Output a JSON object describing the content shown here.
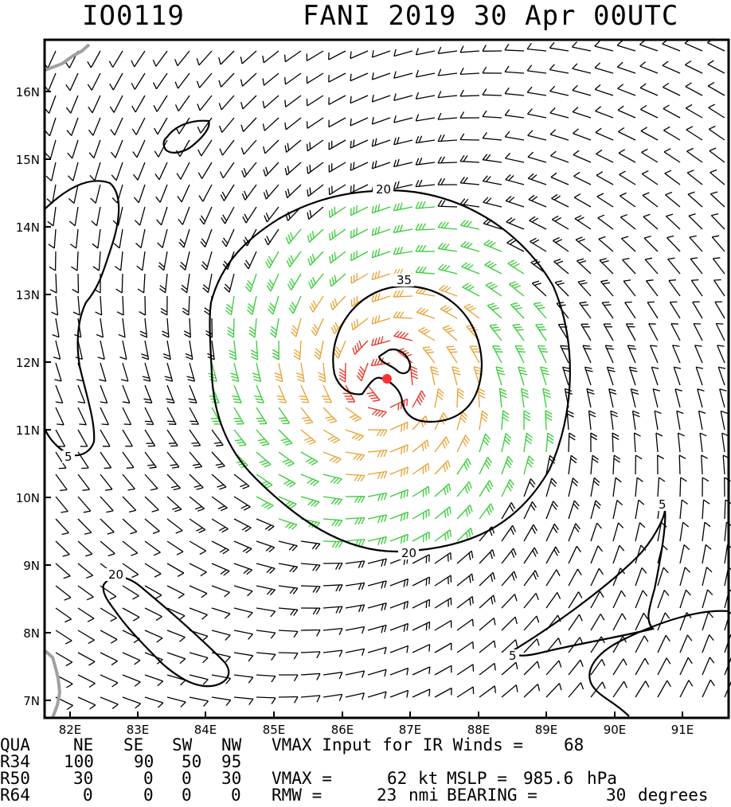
{
  "header": {
    "storm_id": "IO0119",
    "storm_title": "FANI 2019 30 Apr 00UTC"
  },
  "map": {
    "lat_labels": [
      "16N",
      "15N",
      "14N",
      "13N",
      "12N",
      "11N",
      "10N",
      "9N",
      "8N",
      "7N"
    ],
    "lon_labels": [
      "82E",
      "83E",
      "84E",
      "85E",
      "86E",
      "87E",
      "88E",
      "89E",
      "90E",
      "91E"
    ],
    "contour_labels": [
      "20",
      "35",
      "5",
      "5",
      "20",
      "20",
      "5"
    ],
    "colors": {
      "barb_weak": "#000000",
      "barb_34kt": "#33cc33",
      "barb_50kt": "#e8a030",
      "barb_64kt": "#e83020",
      "center": "#ff3030",
      "coastline": "#a0a0a0",
      "contour": "#000000"
    }
  },
  "table": {
    "header_row": [
      "QUA",
      "NE",
      "SE",
      "SW",
      "NW"
    ],
    "rows": [
      {
        "label": "R34",
        "values": [
          "100",
          "90",
          "50",
          "95"
        ]
      },
      {
        "label": "R50",
        "values": [
          "30",
          "0",
          "0",
          "30"
        ]
      },
      {
        "label": "R64",
        "values": [
          "0",
          "0",
          "0",
          "0"
        ]
      }
    ]
  },
  "info": {
    "vmax_input_label": "VMAX Input for IR Winds =",
    "vmax_input_value": "68",
    "vmax_label": "VMAX =",
    "vmax_value": "62",
    "vmax_unit": "kt",
    "mslp_label": "MSLP =",
    "mslp_value": "985.6",
    "mslp_unit": "hPa",
    "rmw_label": "RMW =",
    "rmw_value": "23",
    "rmw_unit": "nmi",
    "bearing_label": "BEARING =",
    "bearing_value": "30",
    "bearing_unit": "degrees"
  }
}
